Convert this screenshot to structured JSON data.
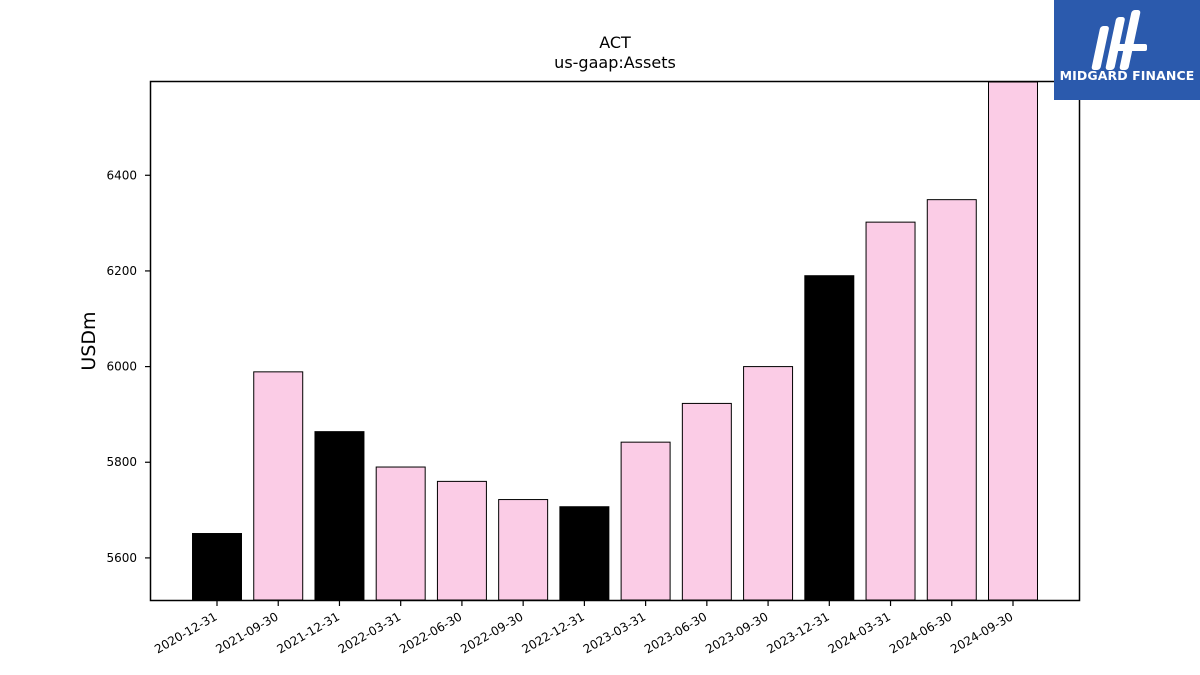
{
  "chart_data": {
    "type": "bar",
    "title": "ACT",
    "subtitle": "us-gaap:Assets",
    "xlabel": "",
    "ylabel": "USDm",
    "ylim": [
      5512,
      6595
    ],
    "yticks": [
      5600,
      5800,
      6000,
      6200,
      6400
    ],
    "grid": false,
    "categories": [
      "2020-12-31",
      "2021-09-30",
      "2021-12-31",
      "2022-03-31",
      "2022-06-30",
      "2022-09-30",
      "2022-12-31",
      "2023-03-31",
      "2023-06-30",
      "2023-09-30",
      "2023-12-31",
      "2024-03-31",
      "2024-06-30",
      "2024-09-30"
    ],
    "values": [
      5651,
      5989,
      5864,
      5790,
      5760,
      5722,
      5707,
      5842,
      5923,
      6000,
      6190,
      6302,
      6349,
      6595
    ],
    "colors": [
      "#000000",
      "#fbcce6",
      "#000000",
      "#fbcce6",
      "#fbcce6",
      "#fbcce6",
      "#000000",
      "#fbcce6",
      "#fbcce6",
      "#fbcce6",
      "#000000",
      "#fbcce6",
      "#fbcce6",
      "#fbcce6"
    ]
  },
  "logo": {
    "text": "MIDGARD FINANCE",
    "icon": "midgard-finance-logo-icon",
    "background": "#2b5aad"
  }
}
